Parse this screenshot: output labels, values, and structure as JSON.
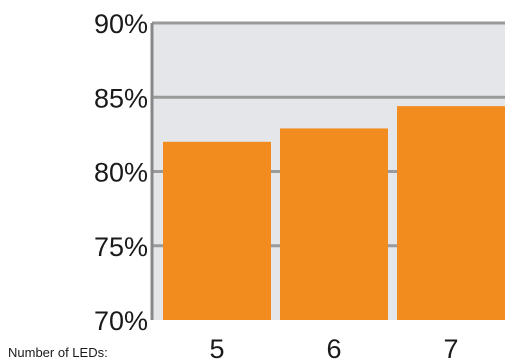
{
  "chart_data": {
    "type": "bar",
    "categories": [
      "5",
      "6",
      "7"
    ],
    "values": [
      82.0,
      82.9,
      84.4
    ],
    "xlabel": "Number of LEDs:",
    "ylabel": "",
    "ylim": [
      70,
      90
    ],
    "yticks": [
      {
        "value": 70,
        "label": "70%"
      },
      {
        "value": 75,
        "label": "75%"
      },
      {
        "value": 80,
        "label": "80%"
      },
      {
        "value": 85,
        "label": "85%"
      },
      {
        "value": 90,
        "label": "90%"
      }
    ],
    "grid": true
  },
  "colors": {
    "bar": "#f28c1e",
    "plot_background": "#e4e6ea",
    "gridline": "#9a9a9a",
    "axis": "#888888",
    "text": "#1a1a1a"
  }
}
